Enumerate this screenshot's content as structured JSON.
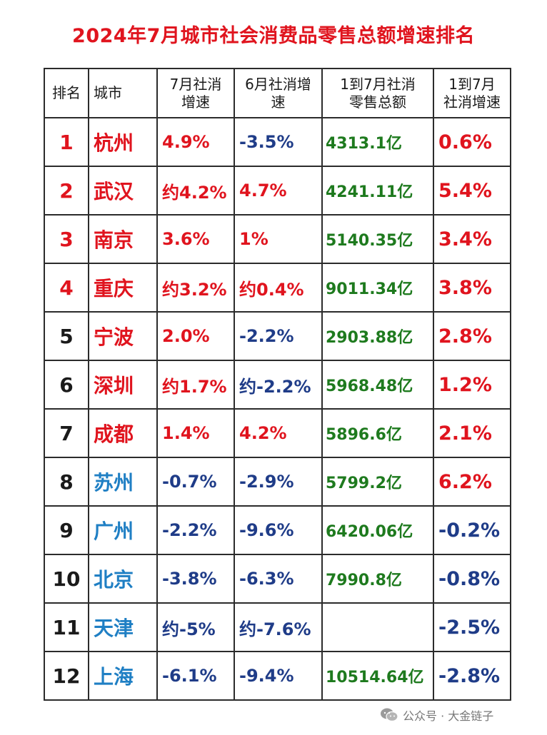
{
  "title": "2024年7月城市社会消费品零售总额增速排名",
  "headers": {
    "rank": "排名",
    "city": "城市",
    "jul_l1": "7月社消",
    "jul_l2": "增速",
    "jun_l1": "6月社消增",
    "jun_l2": "速",
    "total_l1": "1到7月社消",
    "total_l2": "零售总额",
    "ytd_l1": "1到7月",
    "ytd_l2": "社消增速"
  },
  "colors": {
    "red": "#e0141e",
    "navy": "#1f3c88",
    "blue": "#1f7fc4",
    "green": "#1e7a1e",
    "black": "#1a1a1a"
  },
  "rows": [
    {
      "rank": "1",
      "city": "杭州",
      "jul": "4.9%",
      "jun": "-3.5%",
      "total": "4313.1亿",
      "ytd": "0.6%"
    },
    {
      "rank": "2",
      "city": "武汉",
      "jul": "约4.2%",
      "jun": "4.7%",
      "total": "4241.11亿",
      "ytd": "5.4%"
    },
    {
      "rank": "3",
      "city": "南京",
      "jul": "3.6%",
      "jun": "1%",
      "total": "5140.35亿",
      "ytd": "3.4%"
    },
    {
      "rank": "4",
      "city": "重庆",
      "jul": "约3.2%",
      "jun": "约0.4%",
      "total": "9011.34亿",
      "ytd": "3.8%"
    },
    {
      "rank": "5",
      "city": "宁波",
      "jul": "2.0%",
      "jun": "-2.2%",
      "total": "2903.88亿",
      "ytd": "2.8%"
    },
    {
      "rank": "6",
      "city": "深圳",
      "jul": "约1.7%",
      "jun": "约-2.2%",
      "total": "5968.48亿",
      "ytd": "1.2%"
    },
    {
      "rank": "7",
      "city": "成都",
      "jul": "1.4%",
      "jun": "4.2%",
      "total": "5896.6亿",
      "ytd": "2.1%"
    },
    {
      "rank": "8",
      "city": "苏州",
      "jul": "-0.7%",
      "jun": "-2.9%",
      "total": "5799.2亿",
      "ytd": "6.2%"
    },
    {
      "rank": "9",
      "city": "广州",
      "jul": "-2.2%",
      "jun": "-9.6%",
      "total": "6420.06亿",
      "ytd": "-0.2%"
    },
    {
      "rank": "10",
      "city": "北京",
      "jul": "-3.8%",
      "jun": "-6.3%",
      "total": "7990.8亿",
      "ytd": "-0.8%"
    },
    {
      "rank": "11",
      "city": "天津",
      "jul": "约-5%",
      "jun": "约-7.6%",
      "total": "",
      "ytd": "-2.5%"
    },
    {
      "rank": "12",
      "city": "上海",
      "jul": "-6.1%",
      "jun": "-9.4%",
      "total": "10514.64亿",
      "ytd": "-2.8%"
    }
  ],
  "watermark": {
    "icon": "wechat-icon",
    "text": "公众号 · 大金链子"
  }
}
